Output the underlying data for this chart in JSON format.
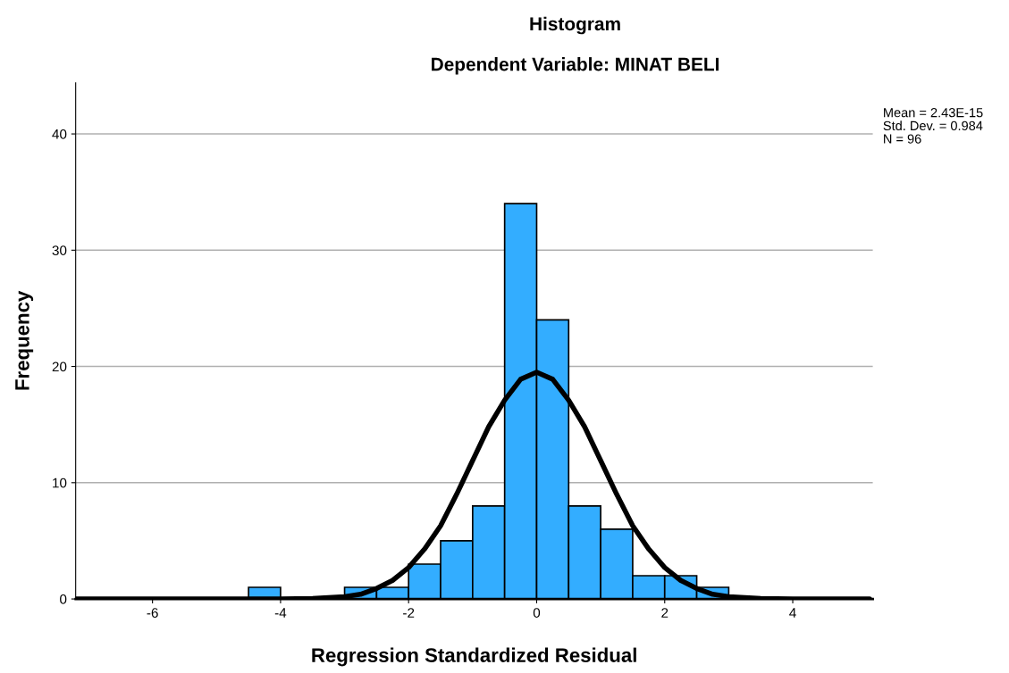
{
  "chart_data": {
    "type": "histogram",
    "title": "Histogram",
    "subtitle": "Dependent Variable: MINAT BELI",
    "xlabel": "Regression Standardized Residual",
    "ylabel": "Frequency",
    "bins": [
      -4.5,
      -4,
      -3.5,
      -3,
      -2.5,
      -2,
      -1.5,
      -1,
      -0.5,
      0,
      0.5,
      1,
      1.5,
      2,
      2.5,
      3
    ],
    "values": [
      1,
      0,
      0,
      1,
      1,
      3,
      5,
      8,
      34,
      24,
      8,
      6,
      2,
      2,
      1
    ],
    "color": "#33adff",
    "series": [
      {
        "type": "line",
        "color": "#000000",
        "x": [
          -7.2,
          -5,
          -4,
          -3.5,
          -3,
          -2.75,
          -2.5,
          -2.25,
          -2,
          -1.75,
          -1.5,
          -1.25,
          -1,
          -0.75,
          -0.5,
          -0.25,
          0,
          0.25,
          0.5,
          0.75,
          1,
          1.25,
          1.5,
          1.75,
          2,
          2.25,
          2.5,
          2.75,
          3,
          3.5,
          4,
          5.2
        ],
        "values": [
          0,
          0,
          0,
          0.05,
          0.2,
          0.4,
          0.9,
          1.6,
          2.7,
          4.3,
          6.3,
          9.0,
          11.9,
          14.8,
          17.1,
          18.9,
          19.5,
          18.9,
          17.1,
          14.8,
          11.9,
          9.0,
          6.3,
          4.3,
          2.7,
          1.6,
          0.9,
          0.4,
          0.2,
          0.05,
          0,
          0
        ]
      }
    ],
    "xlim": [
      -7.2,
      5.25
    ],
    "xticks": [
      -6,
      -4,
      -2,
      0,
      2,
      4
    ],
    "ylim": [
      0,
      44.4
    ],
    "yticks": [
      0,
      10,
      20,
      30,
      40
    ],
    "grid": "y",
    "legend": false,
    "annotations": [
      "Mean = 2.43E-15",
      "Std. Dev. = 0.984",
      "N = 96"
    ]
  }
}
